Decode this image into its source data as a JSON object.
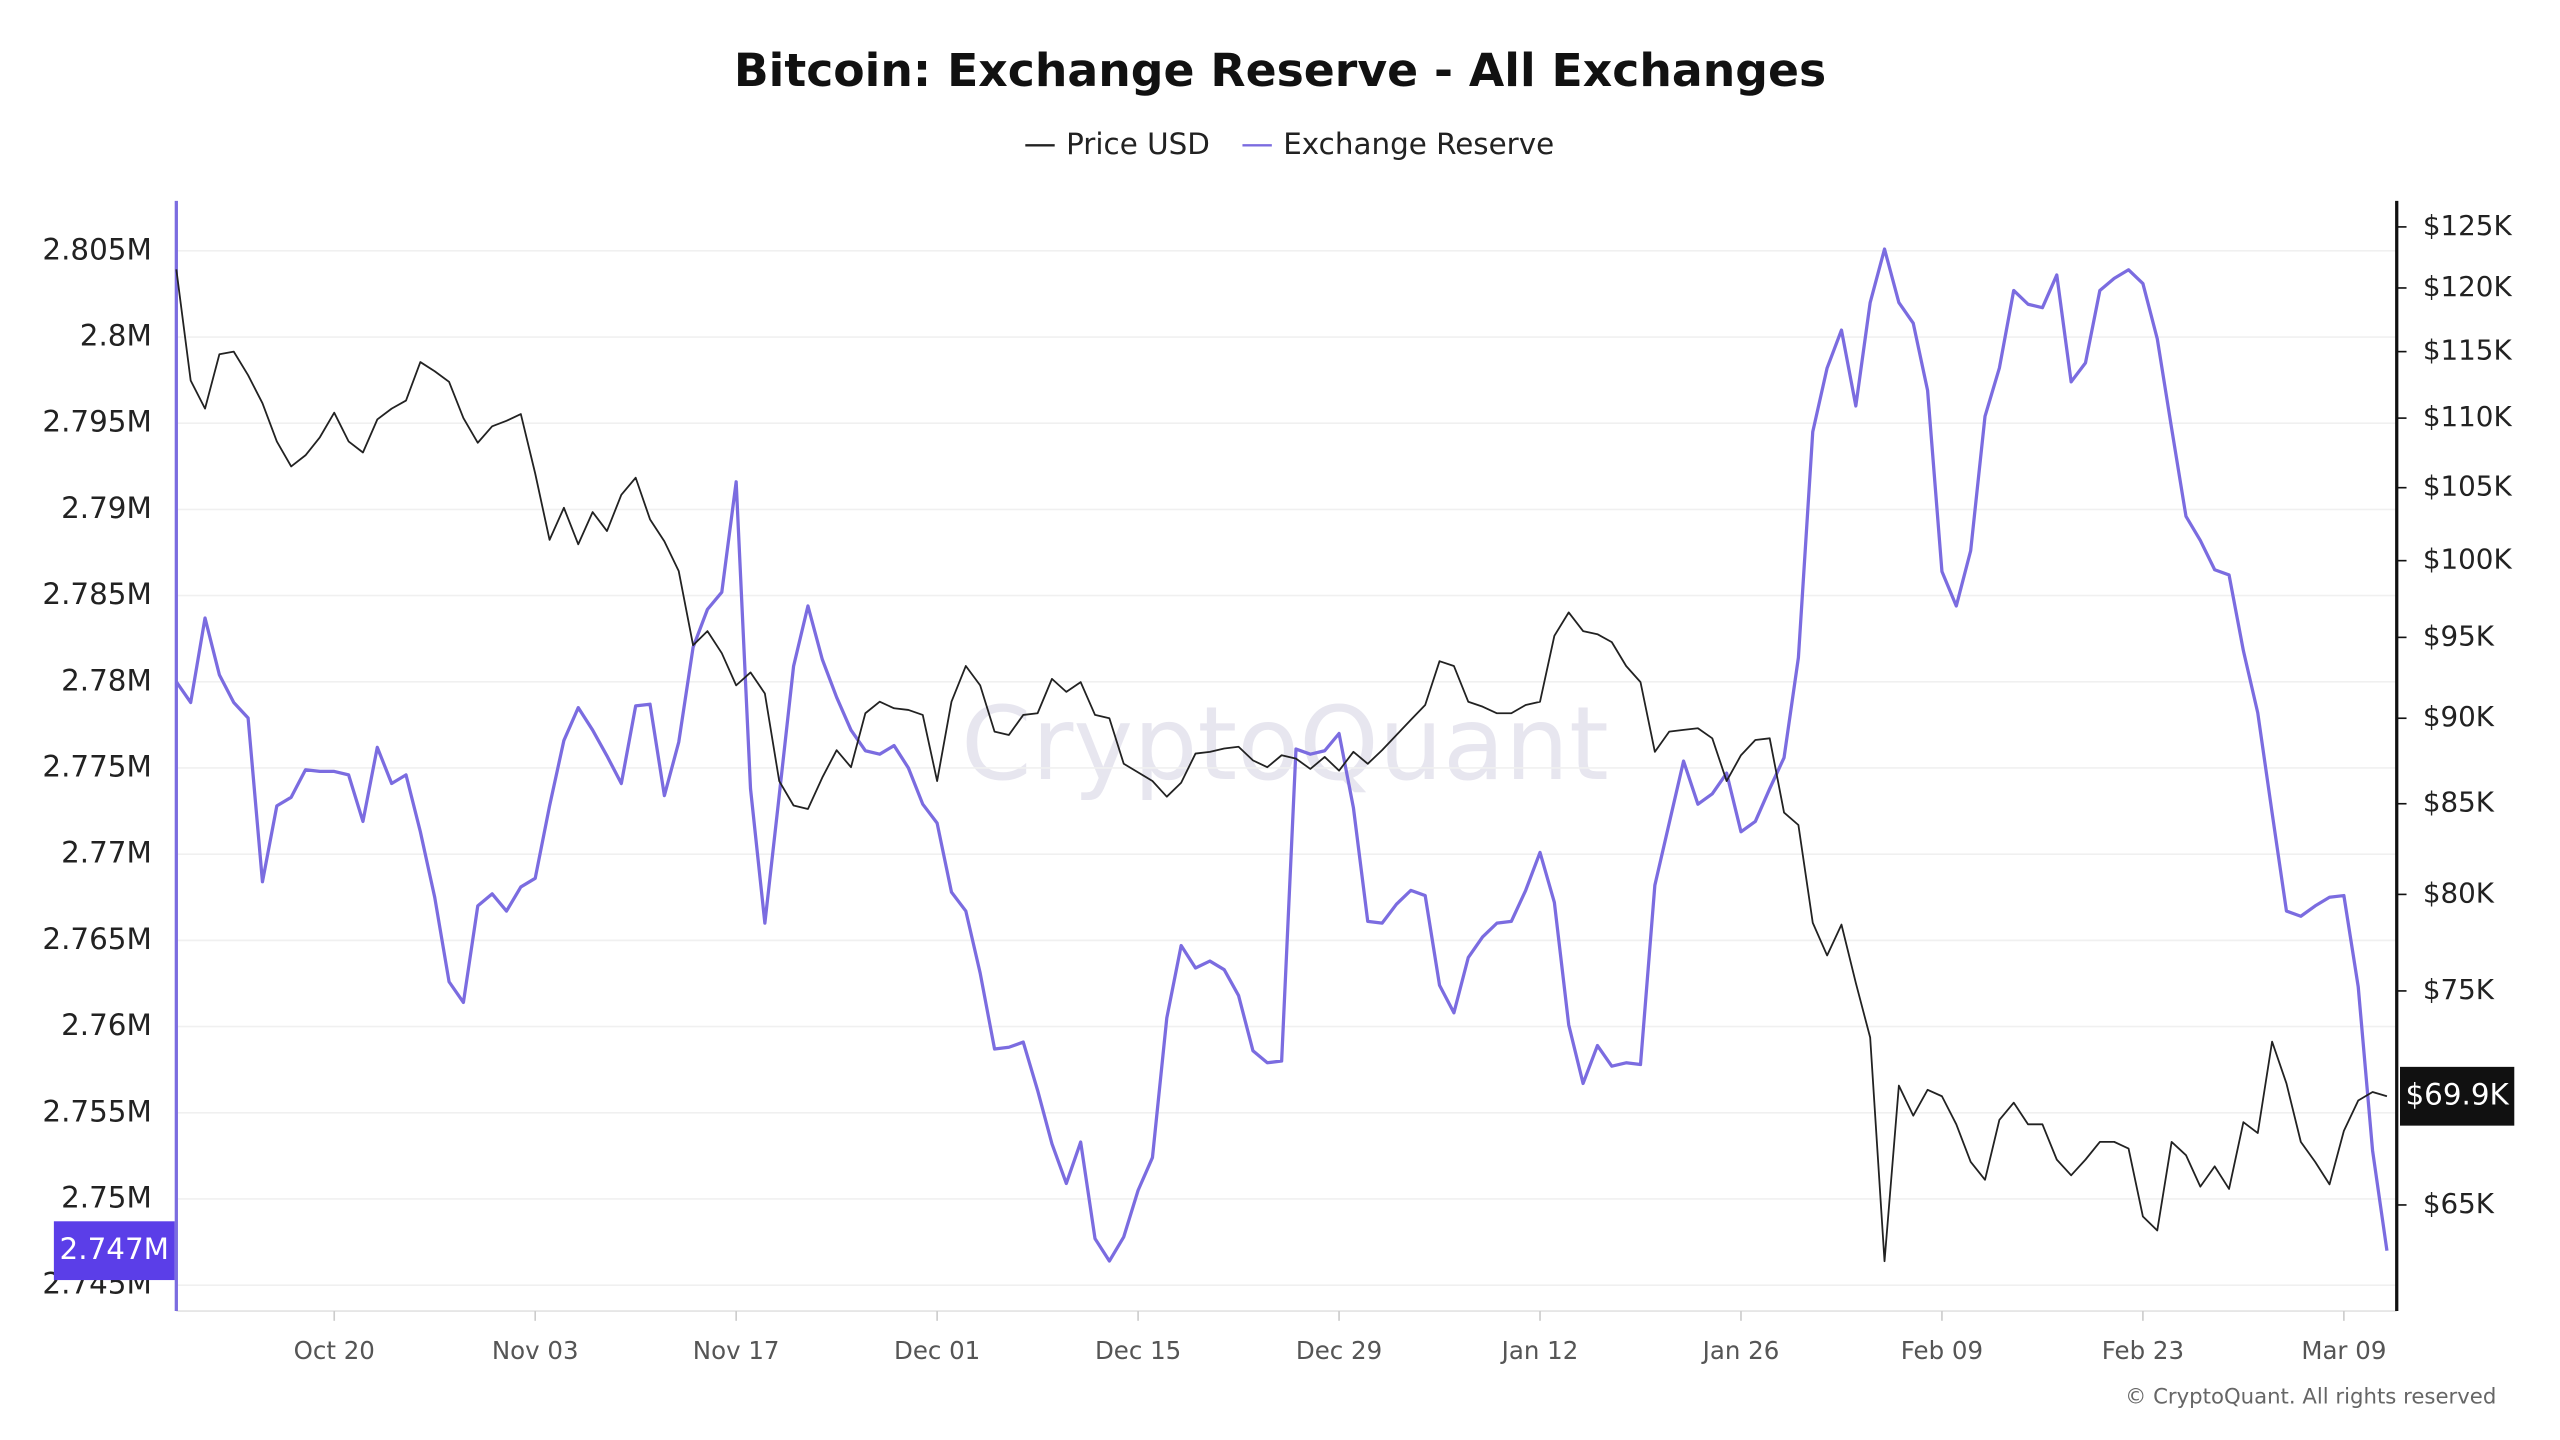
{
  "chart_data": {
    "type": "line",
    "title": "Bitcoin: Exchange Reserve - All Exchanges",
    "watermark": "CryptoQuant",
    "credit": "© CryptoQuant. All rights reserved",
    "grid": true,
    "legend": "top",
    "y2_log": true,
    "categories": [
      null,
      null,
      null,
      null,
      null,
      null,
      null,
      null,
      null,
      null,
      null,
      "Oct 20",
      null,
      null,
      null,
      null,
      null,
      null,
      null,
      null,
      null,
      null,
      null,
      null,
      null,
      "Nov 03",
      null,
      null,
      null,
      null,
      null,
      null,
      null,
      null,
      null,
      null,
      null,
      null,
      null,
      "Nov 17",
      null,
      null,
      null,
      null,
      null,
      null,
      null,
      null,
      null,
      null,
      null,
      null,
      null,
      "Dec 01",
      null,
      null,
      null,
      null,
      null,
      null,
      null,
      null,
      null,
      null,
      null,
      null,
      null,
      "Dec 15",
      null,
      null,
      null,
      null,
      null,
      null,
      null,
      null,
      null,
      null,
      null,
      null,
      null,
      "Dec 29",
      null,
      null,
      null,
      null,
      null,
      null,
      null,
      null,
      null,
      null,
      null,
      null,
      null,
      "Jan 12",
      null,
      null,
      null,
      null,
      null,
      null,
      null,
      null,
      null,
      null,
      null,
      null,
      null,
      "Jan 26",
      null,
      null,
      null,
      null,
      null,
      null,
      null,
      null,
      null,
      null,
      null,
      null,
      null,
      "Feb 09",
      null,
      null,
      null,
      null,
      null,
      null,
      null,
      null,
      null,
      null,
      null,
      null,
      null,
      "Feb 23",
      null,
      null,
      null,
      null,
      null,
      null,
      null,
      null,
      null,
      null,
      null,
      null,
      null,
      "Mar 09",
      null,
      null,
      null
    ],
    "ylim": [
      2743500,
      2807900
    ],
    "yticks": [
      {
        "value": 2745000,
        "label": "2.745M"
      },
      {
        "value": 2750000,
        "label": "2.75M"
      },
      {
        "value": 2755000,
        "label": "2.755M"
      },
      {
        "value": 2760000,
        "label": "2.76M"
      },
      {
        "value": 2765000,
        "label": "2.765M"
      },
      {
        "value": 2770000,
        "label": "2.77M"
      },
      {
        "value": 2775000,
        "label": "2.775M"
      },
      {
        "value": 2780000,
        "label": "2.78M"
      },
      {
        "value": 2785000,
        "label": "2.785M"
      },
      {
        "value": 2790000,
        "label": "2.79M"
      },
      {
        "value": 2795000,
        "label": "2.795M"
      },
      {
        "value": 2800000,
        "label": "2.8M"
      },
      {
        "value": 2805000,
        "label": "2.805M"
      }
    ],
    "y2lim": [
      60550,
      127200
    ],
    "y2ticks": [
      {
        "value": 65000,
        "label": "$65K"
      },
      {
        "value": 75000,
        "label": "$75K"
      },
      {
        "value": 80000,
        "label": "$80K"
      },
      {
        "value": 85000,
        "label": "$85K"
      },
      {
        "value": 90000,
        "label": "$90K"
      },
      {
        "value": 95000,
        "label": "$95K"
      },
      {
        "value": 100000,
        "label": "$100K"
      },
      {
        "value": 105000,
        "label": "$105K"
      },
      {
        "value": 110000,
        "label": "$110K"
      },
      {
        "value": 115000,
        "label": "$115K"
      },
      {
        "value": 120000,
        "label": "$120K"
      },
      {
        "value": 125000,
        "label": "$125K"
      }
    ],
    "series": [
      {
        "name": "Price USD",
        "color": "#222222",
        "axis": "y2",
        "values": [
          121500,
          112800,
          110700,
          114800,
          115000,
          113200,
          111100,
          108300,
          106500,
          107300,
          108600,
          110400,
          108300,
          107500,
          109900,
          110700,
          111300,
          114200,
          113500,
          112700,
          110000,
          108200,
          109400,
          109800,
          110300,
          106000,
          101400,
          103600,
          101100,
          103300,
          102000,
          104500,
          105700,
          102800,
          101300,
          99300,
          94500,
          95400,
          94000,
          92000,
          92800,
          91500,
          86300,
          84900,
          84700,
          86500,
          88100,
          87100,
          90300,
          91000,
          90600,
          90500,
          90200,
          86300,
          91000,
          93200,
          92000,
          89200,
          89000,
          90200,
          90300,
          92400,
          91600,
          92200,
          90200,
          90000,
          87300,
          86800,
          86300,
          85400,
          86200,
          87900,
          88000,
          88200,
          88300,
          87500,
          87100,
          87800,
          87600,
          87000,
          87700,
          86900,
          88000,
          87300,
          88100,
          89000,
          89900,
          90800,
          93500,
          93200,
          91000,
          90700,
          90300,
          90300,
          90800,
          91000,
          95100,
          96600,
          95400,
          95200,
          94700,
          93200,
          92200,
          88000,
          89200,
          89300,
          89400,
          88800,
          86300,
          87800,
          88700,
          88800,
          84500,
          83800,
          78500,
          76800,
          78400,
          75400,
          72700,
          62600,
          70400,
          69000,
          70200,
          69900,
          68600,
          66900,
          66100,
          68800,
          69600,
          68600,
          68600,
          67000,
          66300,
          67000,
          67800,
          67800,
          67500,
          64500,
          63900,
          67800,
          67200,
          65800,
          66700,
          65700,
          68700,
          68200,
          72500,
          70500,
          67800,
          66900,
          65900,
          68300,
          69700,
          70100,
          69900
        ],
        "value_labels": [
          null,
          null,
          null,
          null,
          null,
          null,
          null,
          null,
          null,
          null,
          null,
          null,
          null,
          null,
          null,
          null,
          null,
          null,
          null,
          null,
          null,
          null,
          null,
          null,
          null,
          null,
          null,
          null,
          null,
          null,
          null,
          null,
          null,
          null,
          null,
          null,
          null,
          null,
          null,
          null,
          null,
          null,
          null,
          null,
          null,
          null,
          null,
          null,
          null,
          null,
          null,
          null,
          null,
          null,
          null,
          null,
          null,
          null,
          null,
          null,
          null,
          null,
          null,
          null,
          null,
          null,
          null,
          null,
          null,
          null,
          null,
          null,
          null,
          null,
          null,
          null,
          null,
          null,
          null,
          null,
          null,
          null,
          null,
          null,
          null,
          null,
          null,
          null,
          null,
          null,
          null,
          null,
          null,
          null,
          null,
          null,
          null,
          null,
          null,
          null,
          null,
          null,
          null,
          null,
          null,
          null,
          null,
          null,
          null,
          null,
          null,
          null,
          null,
          null,
          null,
          null,
          null,
          null,
          null,
          null,
          null,
          null,
          null,
          null,
          null,
          null,
          null,
          null,
          null,
          null,
          null,
          null,
          null,
          null,
          null,
          null,
          null,
          null,
          null,
          null,
          null,
          null,
          null,
          null,
          null,
          null,
          null,
          null,
          null,
          null,
          null,
          null,
          null,
          null,
          "$69.9K"
        ]
      },
      {
        "name": "Exchange Reserve",
        "color": "#7b6ce0",
        "axis": "y",
        "values": [
          2780000,
          2778800,
          2783700,
          2780400,
          2778800,
          2777900,
          2768400,
          2772800,
          2773300,
          2774900,
          2774800,
          2774800,
          2774600,
          2771900,
          2776200,
          2774100,
          2774600,
          2771300,
          2767500,
          2762600,
          2761400,
          2767000,
          2767700,
          2766700,
          2768100,
          2768600,
          2772800,
          2776600,
          2778500,
          2777200,
          2775700,
          2774100,
          2778600,
          2778700,
          2773400,
          2776500,
          2782000,
          2784200,
          2785200,
          2791600,
          2773800,
          2766000,
          2773400,
          2780900,
          2784400,
          2781300,
          2779100,
          2777200,
          2776000,
          2775800,
          2776300,
          2775000,
          2772900,
          2771800,
          2767800,
          2766700,
          2763100,
          2758700,
          2758800,
          2759100,
          2756300,
          2753200,
          2750900,
          2753300,
          2747700,
          2746400,
          2747800,
          2750500,
          2752400,
          2760500,
          2764700,
          2763400,
          2763800,
          2763300,
          2761800,
          2758600,
          2757900,
          2758000,
          2776100,
          2775800,
          2776000,
          2777000,
          2772700,
          2766100,
          2766000,
          2767100,
          2767900,
          2767600,
          2762400,
          2760800,
          2764000,
          2765200,
          2766000,
          2766100,
          2767900,
          2770100,
          2767200,
          2760100,
          2756700,
          2758900,
          2757700,
          2757900,
          2757800,
          2768200,
          2771800,
          2775400,
          2772900,
          2773500,
          2774700,
          2771300,
          2771900,
          2773800,
          2775600,
          2781400,
          2794500,
          2798200,
          2800400,
          2796000,
          2802000,
          2805100,
          2802000,
          2800800,
          2796900,
          2786400,
          2784400,
          2787600,
          2795400,
          2798200,
          2802700,
          2801900,
          2801700,
          2803600,
          2797400,
          2798500,
          2802700,
          2803400,
          2803900,
          2803100,
          2799900,
          2794700,
          2789600,
          2788200,
          2786500,
          2786200,
          2781800,
          2778200,
          2772400,
          2766700,
          2766400,
          2767000,
          2767500,
          2767600,
          2762300,
          2752800,
          2747000
        ],
        "value_labels": [
          null,
          null,
          null,
          null,
          null,
          null,
          null,
          null,
          null,
          null,
          null,
          null,
          null,
          null,
          null,
          null,
          null,
          null,
          null,
          null,
          null,
          null,
          null,
          null,
          null,
          null,
          null,
          null,
          null,
          null,
          null,
          null,
          null,
          null,
          null,
          null,
          null,
          null,
          null,
          null,
          null,
          null,
          null,
          null,
          null,
          null,
          null,
          null,
          null,
          null,
          null,
          null,
          null,
          null,
          null,
          null,
          null,
          null,
          null,
          null,
          null,
          null,
          null,
          null,
          null,
          null,
          null,
          null,
          null,
          null,
          null,
          null,
          null,
          null,
          null,
          null,
          null,
          null,
          null,
          null,
          null,
          null,
          null,
          null,
          null,
          null,
          null,
          null,
          null,
          null,
          null,
          null,
          null,
          null,
          null,
          null,
          null,
          null,
          null,
          null,
          null,
          null,
          null,
          null,
          null,
          null,
          null,
          null,
          null,
          null,
          null,
          null,
          null,
          null,
          null,
          null,
          null,
          null,
          null,
          null,
          null,
          null,
          null,
          null,
          null,
          null,
          null,
          null,
          null,
          null,
          null,
          null,
          null,
          null,
          null,
          null,
          null,
          null,
          null,
          null,
          null,
          null,
          null,
          null,
          null,
          null,
          null,
          null,
          null,
          null,
          null,
          null,
          null,
          null,
          "2.747M"
        ]
      }
    ]
  }
}
